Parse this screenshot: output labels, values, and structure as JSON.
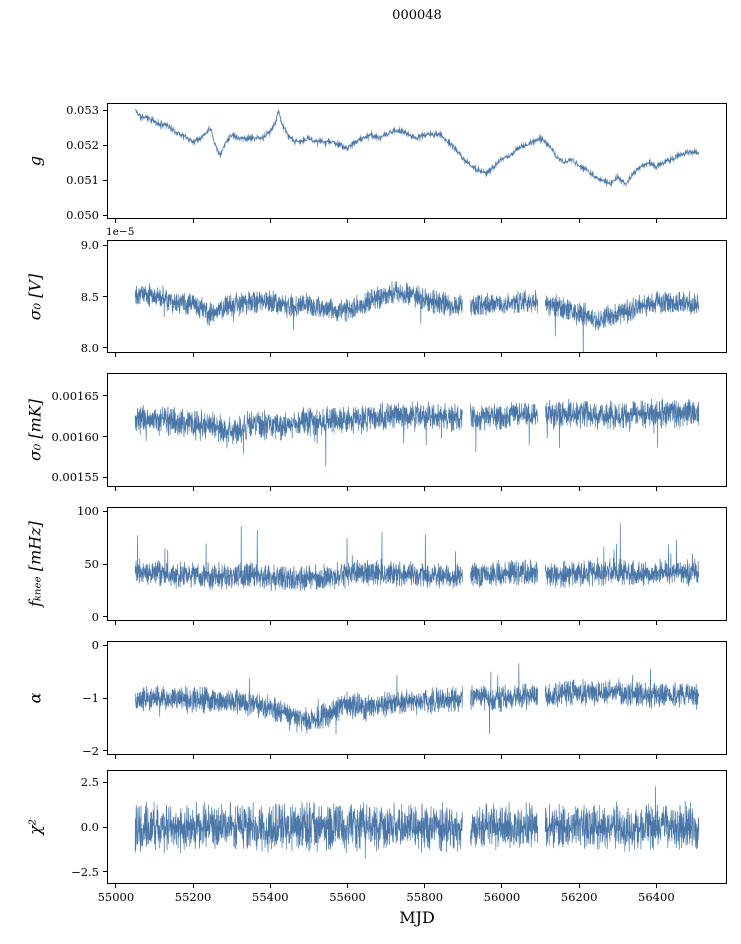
{
  "chart_data": {
    "type": "line",
    "title": "000048",
    "xlabel": "MJD",
    "line_color": "#4a77a8",
    "xlim": [
      54977,
      56583
    ],
    "x_range_data": [
      55050,
      56510
    ],
    "xticks": [
      55000,
      55200,
      55400,
      55600,
      55800,
      56000,
      56200,
      56400
    ],
    "xtick_labels": [
      "55000",
      "55200",
      "55400",
      "55600",
      "55800",
      "56000",
      "56200",
      "56400"
    ],
    "panels": [
      {
        "name": "g",
        "ylabel": "g",
        "ylim": [
          0.0499,
          0.0532
        ],
        "yticks": [
          0.05,
          0.051,
          0.052,
          0.053
        ],
        "ytick_labels": [
          "0.050",
          "0.051",
          "0.052",
          "0.053"
        ],
        "offset_text": null,
        "show_xtick_labels": false,
        "n_points": 1600,
        "noise": 9e-05,
        "line_width": 0.8,
        "seed": 11,
        "gaps": [],
        "spikes": null,
        "trend": [
          [
            55050,
            0.053
          ],
          [
            55065,
            0.0528
          ],
          [
            55080,
            0.0528
          ],
          [
            55095,
            0.0527
          ],
          [
            55110,
            0.0526
          ],
          [
            55130,
            0.0526
          ],
          [
            55150,
            0.0524
          ],
          [
            55170,
            0.0523
          ],
          [
            55185,
            0.0522
          ],
          [
            55200,
            0.0521
          ],
          [
            55215,
            0.0522
          ],
          [
            55230,
            0.0523
          ],
          [
            55245,
            0.0525
          ],
          [
            55258,
            0.052
          ],
          [
            55270,
            0.0517
          ],
          [
            55285,
            0.0521
          ],
          [
            55300,
            0.0523
          ],
          [
            55320,
            0.0522
          ],
          [
            55340,
            0.0522
          ],
          [
            55360,
            0.0522
          ],
          [
            55380,
            0.0522
          ],
          [
            55400,
            0.0524
          ],
          [
            55415,
            0.0527
          ],
          [
            55422,
            0.053
          ],
          [
            55430,
            0.0526
          ],
          [
            55445,
            0.0523
          ],
          [
            55460,
            0.0521
          ],
          [
            55480,
            0.0521
          ],
          [
            55500,
            0.0522
          ],
          [
            55520,
            0.0521
          ],
          [
            55540,
            0.0521
          ],
          [
            55560,
            0.0521
          ],
          [
            55580,
            0.052
          ],
          [
            55600,
            0.0519
          ],
          [
            55620,
            0.0521
          ],
          [
            55640,
            0.0522
          ],
          [
            55660,
            0.0523
          ],
          [
            55680,
            0.0522
          ],
          [
            55700,
            0.0523
          ],
          [
            55720,
            0.0524
          ],
          [
            55740,
            0.0524
          ],
          [
            55760,
            0.0523
          ],
          [
            55780,
            0.0522
          ],
          [
            55800,
            0.0523
          ],
          [
            55820,
            0.0523
          ],
          [
            55840,
            0.0523
          ],
          [
            55860,
            0.0521
          ],
          [
            55880,
            0.0519
          ],
          [
            55900,
            0.0516
          ],
          [
            55920,
            0.0514
          ],
          [
            55940,
            0.0513
          ],
          [
            55960,
            0.0512
          ],
          [
            55980,
            0.0514
          ],
          [
            56000,
            0.0516
          ],
          [
            56020,
            0.0517
          ],
          [
            56040,
            0.0519
          ],
          [
            56060,
            0.052
          ],
          [
            56080,
            0.0521
          ],
          [
            56100,
            0.0522
          ],
          [
            56120,
            0.052
          ],
          [
            56140,
            0.0517
          ],
          [
            56160,
            0.0515
          ],
          [
            56180,
            0.0516
          ],
          [
            56200,
            0.0514
          ],
          [
            56220,
            0.0513
          ],
          [
            56240,
            0.0511
          ],
          [
            56260,
            0.051
          ],
          [
            56280,
            0.0509
          ],
          [
            56300,
            0.0511
          ],
          [
            56320,
            0.0509
          ],
          [
            56340,
            0.0512
          ],
          [
            56360,
            0.0514
          ],
          [
            56380,
            0.0515
          ],
          [
            56400,
            0.0514
          ],
          [
            56420,
            0.0515
          ],
          [
            56440,
            0.0516
          ],
          [
            56460,
            0.0517
          ],
          [
            56480,
            0.0518
          ],
          [
            56510,
            0.0518
          ]
        ]
      },
      {
        "name": "sigma0-v",
        "ylabel": "σ₀ [V]",
        "ylim": [
          7.95,
          9.05
        ],
        "yticks": [
          8.0,
          8.5,
          9.0
        ],
        "ytick_labels": [
          "8.0",
          "8.5",
          "9.0"
        ],
        "offset_text": "1e−5",
        "show_xtick_labels": false,
        "n_points": 2600,
        "noise": 0.13,
        "line_width": 0.7,
        "seed": 22,
        "gaps": [
          [
            55898,
            55918
          ],
          [
            56093,
            56112
          ]
        ],
        "spikes": {
          "prob": 0.006,
          "sign": -1,
          "mag": 0.4
        },
        "trend": [
          [
            55050,
            8.55
          ],
          [
            55100,
            8.5
          ],
          [
            55150,
            8.45
          ],
          [
            55200,
            8.42
          ],
          [
            55250,
            8.33
          ],
          [
            55300,
            8.42
          ],
          [
            55350,
            8.45
          ],
          [
            55400,
            8.45
          ],
          [
            55450,
            8.4
          ],
          [
            55500,
            8.42
          ],
          [
            55550,
            8.38
          ],
          [
            55600,
            8.36
          ],
          [
            55650,
            8.45
          ],
          [
            55700,
            8.52
          ],
          [
            55750,
            8.53
          ],
          [
            55800,
            8.48
          ],
          [
            55850,
            8.42
          ],
          [
            55900,
            8.4
          ],
          [
            55950,
            8.42
          ],
          [
            56000,
            8.42
          ],
          [
            56050,
            8.45
          ],
          [
            56100,
            8.45
          ],
          [
            56150,
            8.4
          ],
          [
            56200,
            8.33
          ],
          [
            56250,
            8.28
          ],
          [
            56300,
            8.33
          ],
          [
            56350,
            8.4
          ],
          [
            56400,
            8.45
          ],
          [
            56450,
            8.45
          ],
          [
            56510,
            8.42
          ]
        ]
      },
      {
        "name": "sigma0-mk",
        "ylabel": "σ₀ [mK]",
        "ylim": [
          0.001538,
          0.001678
        ],
        "yticks": [
          0.00155,
          0.0016,
          0.00165
        ],
        "ytick_labels": [
          "0.00155",
          "0.00160",
          "0.00165"
        ],
        "offset_text": null,
        "show_xtick_labels": false,
        "n_points": 2600,
        "noise": 2e-05,
        "line_width": 0.7,
        "seed": 33,
        "gaps": [
          [
            55898,
            55918
          ],
          [
            56093,
            56112
          ]
        ],
        "spikes": {
          "prob": 0.006,
          "sign": -1,
          "mag": 5e-05
        },
        "trend": [
          [
            55050,
            0.00162
          ],
          [
            55150,
            0.001618
          ],
          [
            55250,
            0.001612
          ],
          [
            55300,
            0.001605
          ],
          [
            55350,
            0.001615
          ],
          [
            55420,
            0.001612
          ],
          [
            55500,
            0.001618
          ],
          [
            55600,
            0.00162
          ],
          [
            55700,
            0.001625
          ],
          [
            55800,
            0.001625
          ],
          [
            55900,
            0.001622
          ],
          [
            56000,
            0.001625
          ],
          [
            56100,
            0.001627
          ],
          [
            56200,
            0.001628
          ],
          [
            56300,
            0.001625
          ],
          [
            56400,
            0.001628
          ],
          [
            56510,
            0.001628
          ]
        ]
      },
      {
        "name": "fknee",
        "ylabel": "fₖₙₑₑ [mHz]",
        "ylim": [
          -4,
          104
        ],
        "yticks": [
          0,
          50,
          100
        ],
        "ytick_labels": [
          "0",
          "50",
          "100"
        ],
        "offset_text": null,
        "show_xtick_labels": false,
        "n_points": 2600,
        "noise": 14,
        "line_width": 0.7,
        "seed": 44,
        "gaps": [
          [
            55898,
            55918
          ],
          [
            56093,
            56112
          ]
        ],
        "spikes": {
          "prob": 0.012,
          "sign": 1,
          "mag": 48
        },
        "trend": [
          [
            55050,
            42
          ],
          [
            55150,
            40
          ],
          [
            55250,
            38
          ],
          [
            55350,
            40
          ],
          [
            55450,
            36
          ],
          [
            55550,
            38
          ],
          [
            55650,
            42
          ],
          [
            55750,
            40
          ],
          [
            55850,
            38
          ],
          [
            55950,
            40
          ],
          [
            56050,
            42
          ],
          [
            56150,
            40
          ],
          [
            56250,
            42
          ],
          [
            56350,
            42
          ],
          [
            56510,
            42
          ]
        ]
      },
      {
        "name": "alpha",
        "ylabel": "α",
        "ylim": [
          -2.08,
          0.08
        ],
        "yticks": [
          -2,
          -1,
          0
        ],
        "ytick_labels": [
          "−2",
          "−1",
          "0"
        ],
        "offset_text": null,
        "show_xtick_labels": false,
        "n_points": 2600,
        "noise": 0.28,
        "line_width": 0.7,
        "seed": 55,
        "gaps": [
          [
            55898,
            55918
          ],
          [
            56093,
            56112
          ]
        ],
        "spikes": {
          "prob": 0.008,
          "sign": 0,
          "mag": 0.55
        },
        "trend": [
          [
            55050,
            -1.0
          ],
          [
            55300,
            -1.05
          ],
          [
            55400,
            -1.2
          ],
          [
            55450,
            -1.35
          ],
          [
            55500,
            -1.45
          ],
          [
            55550,
            -1.3
          ],
          [
            55600,
            -1.1
          ],
          [
            55650,
            -1.2
          ],
          [
            55700,
            -1.1
          ],
          [
            55800,
            -1.05
          ],
          [
            55900,
            -1.0
          ],
          [
            56000,
            -1.0
          ],
          [
            56100,
            -0.95
          ],
          [
            56200,
            -0.9
          ],
          [
            56300,
            -0.9
          ],
          [
            56400,
            -0.95
          ],
          [
            56510,
            -0.95
          ]
        ]
      },
      {
        "name": "chi2",
        "ylabel": "χ²",
        "ylim": [
          -3.2,
          3.2
        ],
        "yticks": [
          -2.5,
          0,
          2.5
        ],
        "ytick_labels": [
          "−2.5",
          "0.0",
          "2.5"
        ],
        "offset_text": null,
        "show_xtick_labels": true,
        "n_points": 2600,
        "noise": 1.5,
        "line_width": 0.7,
        "seed": 66,
        "gaps": [
          [
            55898,
            55918
          ],
          [
            56093,
            56112
          ]
        ],
        "spikes": {
          "prob": 0.008,
          "sign": 0,
          "mag": 1.6
        },
        "trend": [
          [
            55050,
            0
          ],
          [
            56510,
            0
          ]
        ]
      }
    ]
  }
}
